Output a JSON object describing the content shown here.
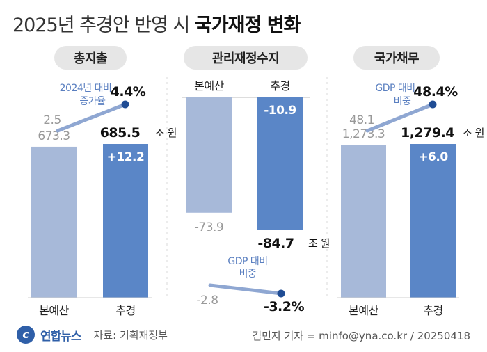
{
  "title": {
    "light": "2025년 추경안 반영 시",
    "bold": "국가재정 변화"
  },
  "footer": {
    "logo": "연합뉴스",
    "source": "자료: 기획재정부",
    "credit": "김민지 기자 = minfo@yna.co.kr / 20250418"
  },
  "colors": {
    "base": "#a7b9d9",
    "revised": "#5a86c7",
    "pill": "#e6e6e6",
    "line": "#8fa7d2",
    "dot": "#1f4c94"
  },
  "chart_data": [
    {
      "type": "bar",
      "title": "총지출",
      "categories": [
        "본예산",
        "추경"
      ],
      "values": [
        673.3,
        685.5
      ],
      "value_labels": [
        "673.3",
        "685.5"
      ],
      "unit": "조 원",
      "delta_label": "+12.2",
      "rate": {
        "caption_line1": "2024년 대비",
        "caption_line2": "증가율",
        "from": 2.5,
        "to": 4.4,
        "from_label": "2.5",
        "to_label": "4.4%"
      }
    },
    {
      "type": "bar",
      "title": "관리재정수지",
      "categories": [
        "본예산",
        "추경"
      ],
      "values": [
        -73.9,
        -84.7
      ],
      "value_labels": [
        "-73.9",
        "-84.7"
      ],
      "unit": "조 원",
      "delta_label": "-10.9",
      "rate": {
        "caption_line1": "GDP 대비",
        "caption_line2": "비중",
        "from": -2.8,
        "to": -3.2,
        "from_label": "-2.8",
        "to_label": "-3.2%"
      }
    },
    {
      "type": "bar",
      "title": "국가채무",
      "categories": [
        "본예산",
        "추경"
      ],
      "values": [
        1273.3,
        1279.4
      ],
      "value_labels": [
        "1,273.3",
        "1,279.4"
      ],
      "unit": "조 원",
      "delta_label": "+6.0",
      "rate": {
        "caption_line1": "GDP 대비",
        "caption_line2": "비중",
        "from": 48.1,
        "to": 48.4,
        "from_label": "48.1",
        "to_label": "48.4%"
      }
    }
  ]
}
